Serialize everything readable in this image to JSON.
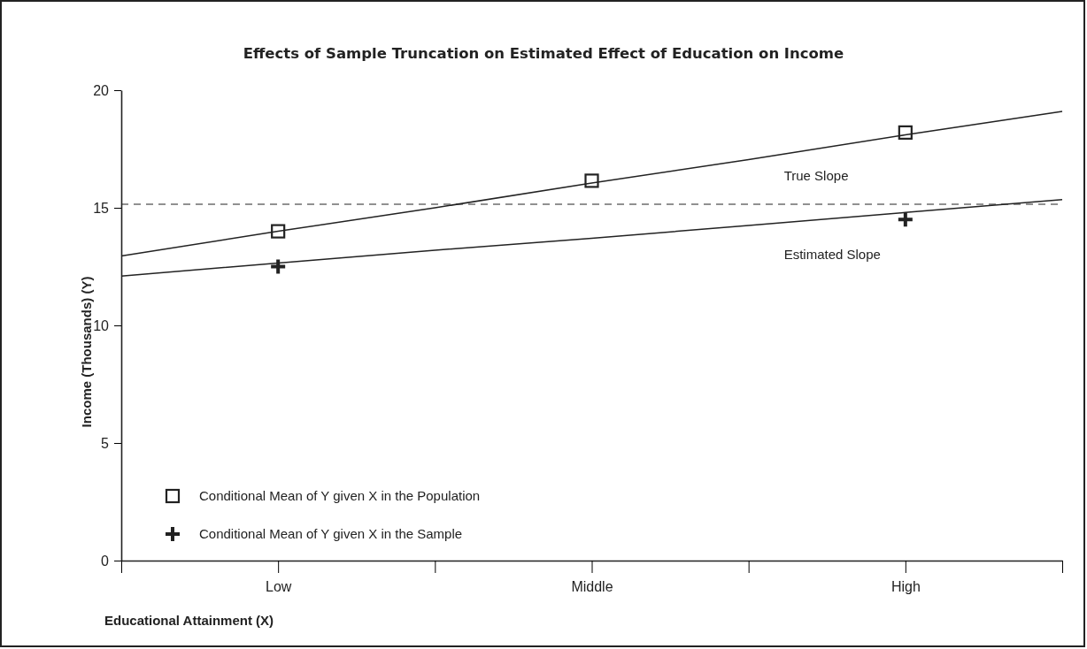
{
  "chart_data": {
    "type": "scatter",
    "title": "Effects of Sample Truncation on Estimated Effect of Education on Income",
    "xlabel": "Educational Attainment (X)",
    "ylabel": "Income (Thousands) (Y)",
    "categories": [
      null,
      "Low",
      null,
      "Middle",
      null,
      "High",
      null
    ],
    "ylim": [
      0,
      20
    ],
    "yticks": [
      0,
      5,
      10,
      15,
      20
    ],
    "series": [
      {
        "name": "True Slope",
        "type": "line",
        "color": "#222222",
        "values": [
          12.95,
          14.0,
          15.0,
          16.05,
          17.05,
          18.1,
          19.1
        ],
        "line_style": "solid"
      },
      {
        "name": "Estimated Slope",
        "type": "line",
        "color": "#222222",
        "values": [
          12.1,
          12.65,
          13.2,
          13.7,
          14.25,
          14.8,
          15.35
        ],
        "line_style": "solid"
      },
      {
        "name": "Conditional Mean of Y given X in the Population",
        "color": "#222222",
        "values": [
          null,
          14.0,
          null,
          16.15,
          null,
          18.2,
          null
        ],
        "marker": "square"
      },
      {
        "name": "Conditional Mean of Y given X in the Sample",
        "color": "#222222",
        "values": [
          null,
          12.5,
          null,
          null,
          null,
          14.5,
          null
        ],
        "marker": "cross"
      }
    ],
    "ref_lines": [
      {
        "axis": "y",
        "value": 15.15,
        "color": "#222222",
        "line_style": "dashed"
      }
    ],
    "legend": "bottom left",
    "grid": false
  }
}
